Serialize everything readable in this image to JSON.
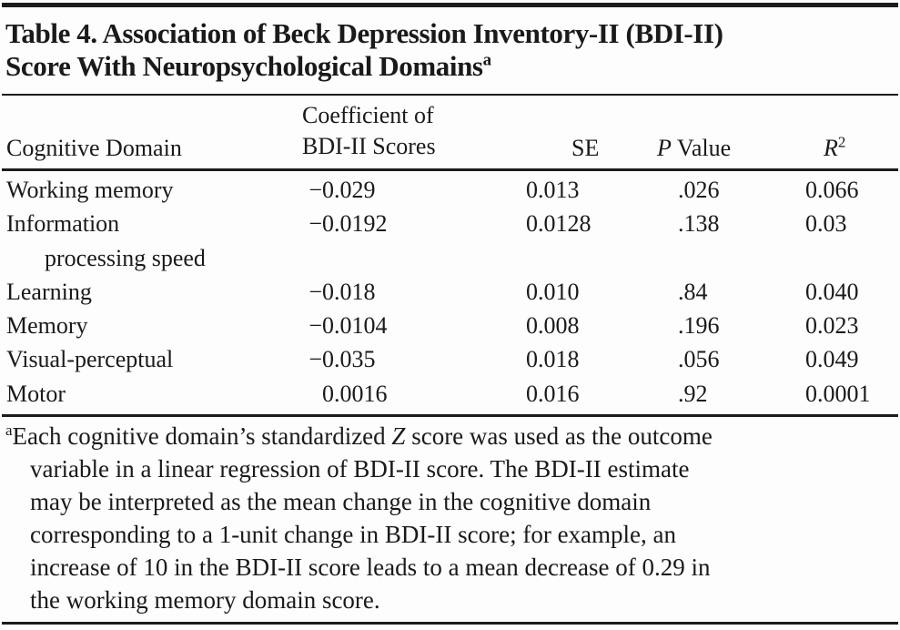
{
  "title": {
    "line1": "Table 4. Association of Beck Depression Inventory-II (BDI-II)",
    "line2": "Score With Neuropsychological Domains",
    "superscript": "a"
  },
  "header": {
    "cognitive_domain": "Cognitive Domain",
    "coefficient_line1": "Coefficient of",
    "coefficient_line2": "BDI-II Scores",
    "se": "SE",
    "p_italic": "P",
    "p_rest": " Value",
    "r_italic": "R",
    "r_sup": "2"
  },
  "rows": [
    {
      "domain": "Working memory",
      "coefficient": "−0.029",
      "se": "0.013",
      "p": ".026",
      "r2": "0.066"
    },
    {
      "domain": "Information",
      "domain_line2": "processing speed",
      "coefficient": "−0.0192",
      "se": "0.0128",
      "p": ".138",
      "r2": "0.03"
    },
    {
      "domain": "Learning",
      "coefficient": "−0.018",
      "se": "0.010",
      "p": ".84",
      "r2": "0.040"
    },
    {
      "domain": "Memory",
      "coefficient": "−0.0104",
      "se": "0.008",
      "p": ".196",
      "r2": "0.023"
    },
    {
      "domain": "Visual-perceptual",
      "coefficient": "−0.035",
      "se": "0.018",
      "p": ".056",
      "r2": "0.049"
    },
    {
      "domain": "Motor",
      "coefficient": "0.0016",
      "se": "0.016",
      "p": ".92",
      "r2": "0.0001"
    }
  ],
  "footnote": {
    "marker": "a",
    "line1_pre": "Each cognitive domain’s standardized ",
    "line1_italic": "Z",
    "line1_post": " score was used as the outcome",
    "lines_rest": [
      "variable in a linear regression of BDI-II score. The BDI-II estimate",
      "may be interpreted as the mean change in the cognitive domain",
      "corresponding to a 1-unit change in BDI-II score; for example, an",
      "increase of 10 in the BDI-II score leads to a mean decrease of 0.29 in",
      "the working memory domain score."
    ]
  },
  "colors": {
    "text": "#1a1a1a",
    "rule": "#1c1c1c",
    "background": "#fdfdfd"
  }
}
